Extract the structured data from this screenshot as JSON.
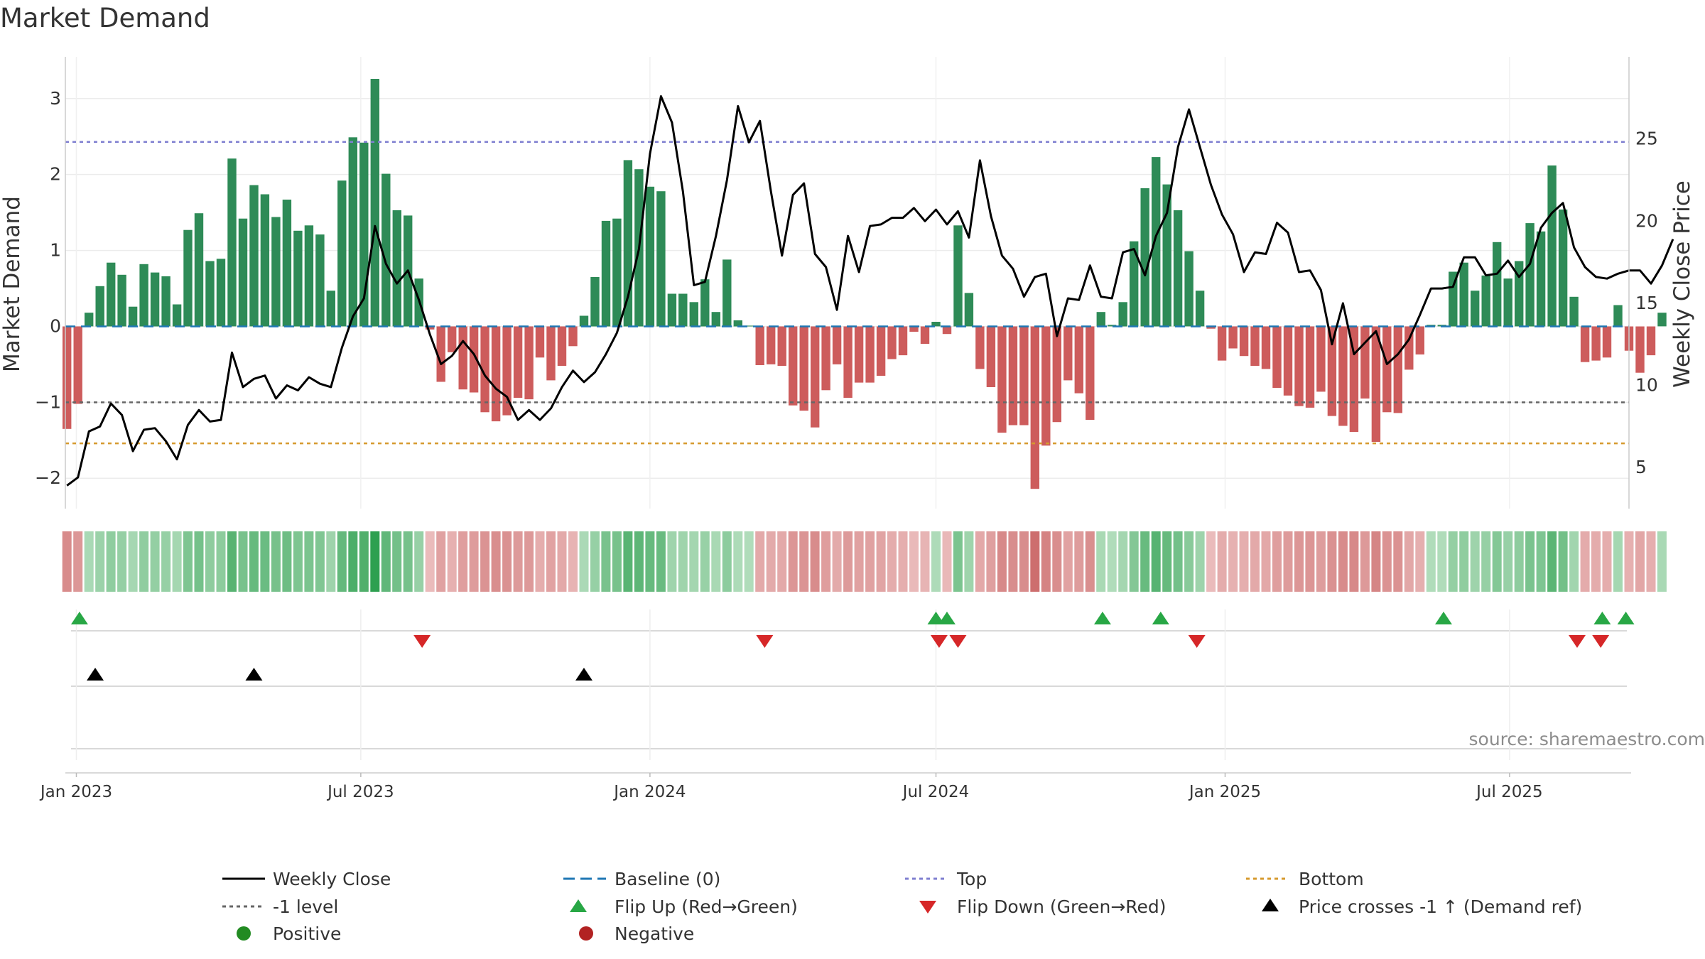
{
  "chart_data": {
    "type": "bar",
    "title": "Market Demand",
    "ylabel": "Market Demand",
    "y2label": "Weekly Close Price",
    "ylim": [
      -2.4,
      3.55
    ],
    "y2lim": [
      2.5,
      30.0
    ],
    "yticks": [
      -2,
      -1,
      0,
      1,
      2,
      3
    ],
    "y2ticks": [
      5,
      10,
      15,
      20,
      25
    ],
    "x_start": "2022-12-25",
    "x_end": "2025-09-15",
    "xticks": [
      {
        "label": "Jan 2023",
        "date": "2023-01-01"
      },
      {
        "label": "Jul 2023",
        "date": "2023-07-01"
      },
      {
        "label": "Jan 2024",
        "date": "2024-01-01"
      },
      {
        "label": "Jul 2024",
        "date": "2024-07-01"
      },
      {
        "label": "Jan 2025",
        "date": "2025-01-01"
      },
      {
        "label": "Jul 2025",
        "date": "2025-07-01"
      }
    ],
    "first_week": "2022-12-26",
    "week_step_days": 7,
    "demand": [
      -1.35,
      -1.02,
      0.18,
      0.53,
      0.84,
      0.68,
      0.26,
      0.82,
      0.71,
      0.66,
      0.29,
      1.27,
      1.49,
      0.86,
      0.89,
      2.21,
      1.42,
      1.86,
      1.74,
      1.44,
      1.67,
      1.26,
      1.33,
      1.21,
      0.47,
      1.92,
      2.49,
      2.42,
      3.26,
      2.01,
      1.53,
      1.46,
      0.63,
      -0.04,
      -0.73,
      -0.34,
      -0.83,
      -0.87,
      -1.13,
      -1.25,
      -1.17,
      -0.94,
      -0.96,
      -0.41,
      -0.71,
      -0.52,
      -0.26,
      0.14,
      0.65,
      1.39,
      1.42,
      2.19,
      2.07,
      1.84,
      1.78,
      0.43,
      0.43,
      0.32,
      0.62,
      0.19,
      0.88,
      0.08,
      0.01,
      -0.51,
      -0.5,
      -0.52,
      -1.04,
      -1.11,
      -1.33,
      -0.84,
      -0.5,
      -0.94,
      -0.74,
      -0.74,
      -0.65,
      -0.43,
      -0.38,
      -0.07,
      -0.23,
      0.06,
      -0.1,
      1.33,
      0.44,
      -0.56,
      -0.8,
      -1.4,
      -1.3,
      -1.3,
      -2.14,
      -1.57,
      -1.26,
      -0.71,
      -0.88,
      -1.23,
      0.19,
      0.02,
      0.32,
      1.12,
      1.82,
      2.23,
      1.87,
      1.53,
      0.99,
      0.47,
      -0.03,
      -0.45,
      -0.29,
      -0.39,
      -0.52,
      -0.56,
      -0.81,
      -0.91,
      -1.05,
      -1.07,
      -0.86,
      -1.18,
      -1.31,
      -1.39,
      -0.95,
      -1.52,
      -1.13,
      -1.14,
      -0.57,
      -0.37,
      0.02,
      0.02,
      0.72,
      0.84,
      0.47,
      0.67,
      1.11,
      0.63,
      0.86,
      1.36,
      1.25,
      2.12,
      1.54,
      0.39,
      -0.47,
      -0.45,
      -0.41,
      0.28,
      -0.32,
      -0.61,
      -0.38,
      0.18
    ],
    "close_weekly": [
      3.9,
      4.4,
      7.2,
      7.5,
      8.9,
      8.2,
      6.0,
      7.3,
      7.4,
      6.6,
      5.5,
      7.6,
      8.5,
      7.8,
      7.9,
      12.0,
      9.9,
      10.4,
      10.6,
      9.2,
      10.0,
      9.7,
      10.5,
      10.1,
      9.9,
      12.3,
      14.2,
      15.3,
      19.7,
      17.4,
      16.2,
      17.0,
      15.2,
      13.1,
      11.3,
      11.8,
      12.7,
      11.9,
      10.6,
      9.8,
      9.3,
      7.9,
      8.5,
      7.9,
      8.6,
      9.9,
      10.9,
      10.2,
      10.8,
      11.9,
      13.2,
      15.4,
      18.3,
      24.1,
      27.6,
      26.0,
      21.8,
      16.1,
      16.3,
      19.1,
      22.5,
      27.0,
      24.8,
      26.1,
      21.8,
      17.9,
      21.6,
      22.3,
      18.0,
      17.2,
      14.6,
      19.1,
      16.9,
      19.7,
      19.8,
      20.2,
      20.2,
      20.8,
      20.0,
      20.7,
      19.8,
      20.6,
      19.0,
      23.7,
      20.3,
      17.9,
      17.1,
      15.4,
      16.6,
      16.8,
      13.0,
      15.3,
      15.2,
      17.3,
      15.4,
      15.3,
      18.1,
      18.3,
      16.7,
      19.1,
      20.5,
      24.5,
      26.8,
      24.5,
      22.2,
      20.4,
      19.2,
      16.9,
      18.1,
      18.0,
      19.9,
      19.3,
      16.9,
      17.0,
      15.8,
      12.5,
      15.0,
      11.9,
      12.6,
      13.3,
      11.3,
      11.9,
      12.8,
      14.3,
      15.9,
      15.9,
      16.0,
      17.8,
      17.8,
      16.7,
      16.8,
      17.6,
      16.6,
      17.4,
      19.6,
      20.5,
      21.1,
      18.4,
      17.2,
      16.6,
      16.5,
      16.8,
      17.0,
      17.0,
      16.2,
      17.3,
      18.9
    ],
    "series": [
      {
        "name": "Weekly Close",
        "values_key": "close_weekly"
      },
      {
        "name": "Positive"
      },
      {
        "name": "Negative"
      }
    ],
    "reference_lines": [
      {
        "name": "Baseline (0)",
        "value": 0,
        "axis": "left",
        "color": "#1f77b4"
      },
      {
        "name": "Top",
        "value": 2.43,
        "axis": "left",
        "color": "#7f7fd0"
      },
      {
        "name": "-1 level",
        "value": -1,
        "axis": "left",
        "color": "#666666"
      },
      {
        "name": "Bottom",
        "value": -1.54,
        "axis": "left",
        "color": "#d69a2e"
      }
    ],
    "flip_up_dates": [
      "2023-01-03",
      "2024-11-21",
      "2024-07-01",
      "2024-07-08",
      "2024-10-15",
      "2025-05-20",
      "2025-08-29",
      "2025-09-13"
    ],
    "flip_down_dates": [
      "2023-08-09",
      "2024-03-14",
      "2024-07-03",
      "2024-07-15",
      "2024-12-14",
      "2025-08-13",
      "2025-08-28"
    ],
    "price_cross_dates": [
      "2023-01-13",
      "2023-04-24",
      "2023-11-20"
    ],
    "heat_strip": "color intensity per week = Market Demand value (green positive, red negative)",
    "source": "source: sharemaestro.com",
    "legend": {
      "weekly_close": "Weekly Close",
      "baseline": "Baseline (0)",
      "top": "Top",
      "bottom": "Bottom",
      "minus1": "-1 level",
      "flip_up": "Flip Up (Red→Green)",
      "flip_down": "Flip Down (Green→Red)",
      "price_cross": "Price crosses -1 ↑ (Demand ref)",
      "positive": "Positive",
      "negative": "Negative"
    },
    "colors": {
      "positive": "#2e8b57",
      "negative": "#cd5c5c",
      "close": "#000000",
      "flip_up": "#28a745",
      "flip_down": "#d62728",
      "price_cross": "#000000",
      "legend_positive": "#228b22",
      "legend_negative": "#b22222"
    }
  }
}
